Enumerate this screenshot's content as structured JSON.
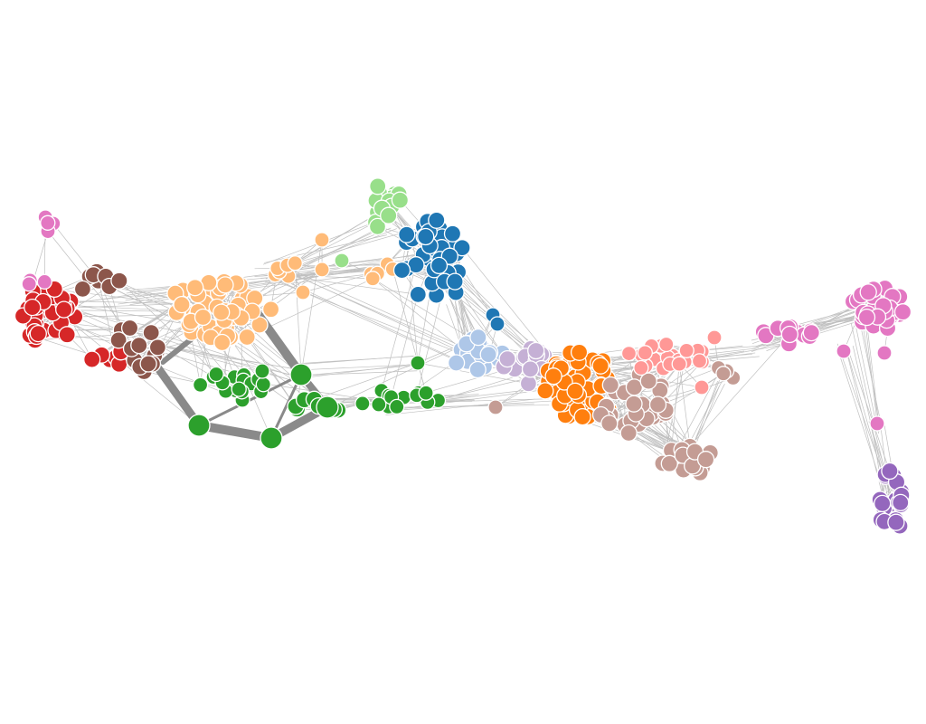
{
  "diagram": {
    "type": "force-directed-network",
    "background": "#ffffff",
    "edge_color": "#c0c0c0",
    "heavy_edge_color": "#8a8a8a",
    "node_stroke": "#ffffff",
    "communities": [
      {
        "id": "red",
        "color": "#d62728"
      },
      {
        "id": "brown",
        "color": "#8c564b"
      },
      {
        "id": "peach",
        "color": "#ffbb78"
      },
      {
        "id": "green",
        "color": "#2ca02c"
      },
      {
        "id": "light-green",
        "color": "#98df8a"
      },
      {
        "id": "blue",
        "color": "#1f77b4"
      },
      {
        "id": "light-blue",
        "color": "#aec7e8"
      },
      {
        "id": "lavender",
        "color": "#c5b0d5"
      },
      {
        "id": "orange",
        "color": "#ff7f0e"
      },
      {
        "id": "rosy-brown",
        "color": "#c49c94"
      },
      {
        "id": "light-pink",
        "color": "#ff9896"
      },
      {
        "id": "pink",
        "color": "#e377c2"
      },
      {
        "id": "purple",
        "color": "#9467bd"
      }
    ]
  }
}
